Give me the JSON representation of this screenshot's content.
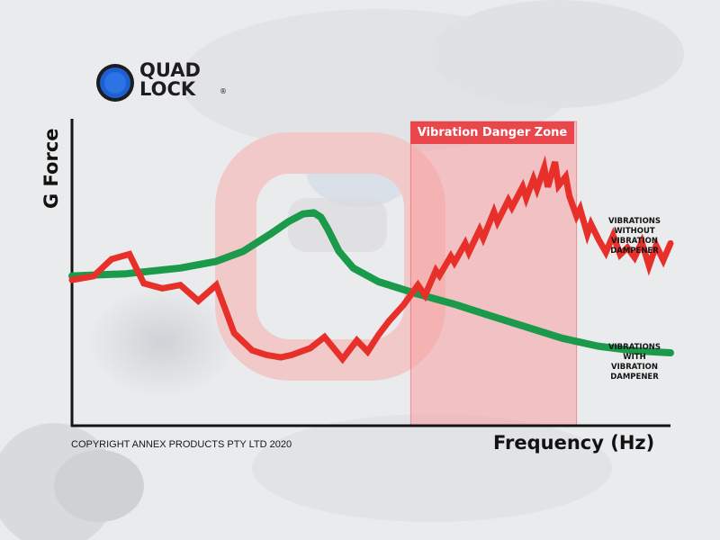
{
  "logo": {
    "line1": "QUAD",
    "line2": "LOCK",
    "registered": "®"
  },
  "copyright": "COPYRIGHT ANNEX PRODUCTS PTY LTD 2020",
  "colors": {
    "without_dampener": "#e8302a",
    "with_dampener": "#1a9a4a",
    "danger_zone": "#f7a0a2",
    "logo_blue": "#1d5fd1"
  },
  "chart_data": {
    "type": "line",
    "title": "",
    "xlabel": "Frequency (Hz)",
    "ylabel": "G Force",
    "xlim": [
      0,
      100
    ],
    "ylim": [
      0,
      100
    ],
    "grid": false,
    "band": {
      "label": "Vibration Danger Zone",
      "x_start": 56.6,
      "x_end": 84.3
    },
    "series": [
      {
        "name_lines": [
          "VIBRATIONS",
          "WITHOUT",
          "VIBRATION",
          "DAMPENER"
        ],
        "x": [
          0,
          3.6,
          6.6,
          9.6,
          12.0,
          15.1,
          18.1,
          21.1,
          24.1,
          27.1,
          30.1,
          32.5,
          34.9,
          36.7,
          39.8,
          42.2,
          45.2,
          47.6,
          49.4,
          51.2,
          53.0,
          55.4,
          57.8,
          59.0,
          60.8,
          61.4,
          63.3,
          63.9,
          65.7,
          66.3,
          68.1,
          68.7,
          70.5,
          71.1,
          72.9,
          73.5,
          75.3,
          75.9,
          77.1,
          77.7,
          78.9,
          79.5,
          80.7,
          81.3,
          82.5,
          83.1,
          84.3,
          84.9,
          86.1,
          86.7,
          88.0,
          89.2,
          90.4,
          91.6,
          92.8,
          94.0,
          95.2,
          96.4,
          97.6,
          98.8,
          100
        ],
        "y": [
          50.7,
          52.3,
          59.4,
          61.5,
          49.3,
          47.2,
          48.6,
          42.0,
          48.6,
          28.5,
          21.3,
          19.4,
          18.4,
          19.4,
          22.2,
          26.9,
          17.7,
          25.5,
          20.8,
          27.8,
          33.7,
          40.3,
          48.6,
          44.3,
          54.7,
          52.6,
          60.6,
          58.0,
          66.0,
          62.3,
          71.7,
          68.2,
          79.2,
          75.0,
          84.0,
          81.1,
          89.6,
          84.9,
          92.9,
          88.7,
          97.6,
          89.6,
          100.0,
          90.1,
          93.9,
          85.8,
          77.4,
          80.4,
          69.8,
          74.1,
          67.5,
          62.3,
          69.3,
          61.3,
          64.2,
          60.1,
          66.5,
          56.6,
          65.1,
          59.0,
          66.0
        ]
      },
      {
        "name_lines": [
          "VIBRATIONS",
          "WITH",
          "VIBRATION",
          "DAMPENER"
        ],
        "x": [
          0,
          9.0,
          18.1,
          24.1,
          28.6,
          33.1,
          36.1,
          38.6,
          40.4,
          41.6,
          42.8,
          44.6,
          47.0,
          51.2,
          57.8,
          63.9,
          69.9,
          75.9,
          81.9,
          87.9,
          93.9,
          100
        ],
        "y": [
          52.4,
          53.3,
          55.7,
          58.5,
          62.7,
          69.8,
          75.0,
          78.3,
          78.8,
          76.9,
          71.7,
          62.7,
          55.7,
          50.0,
          44.8,
          40.6,
          35.8,
          31.1,
          26.4,
          23.1,
          21.2,
          20.3
        ]
      }
    ]
  }
}
